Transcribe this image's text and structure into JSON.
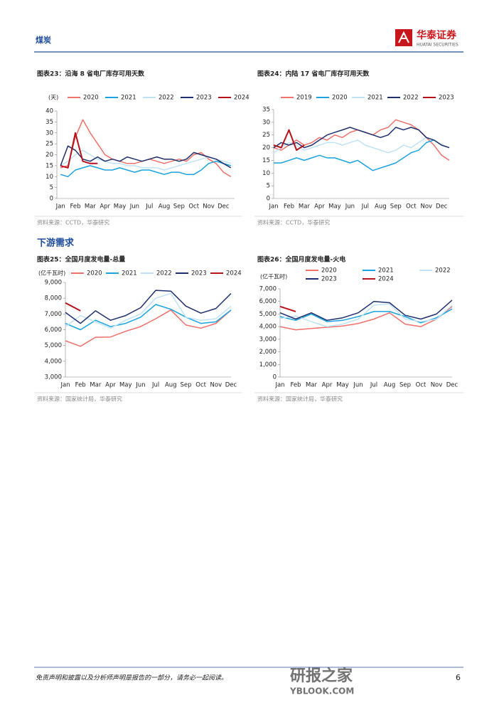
{
  "header": {
    "section": "煤炭",
    "brand": "华泰证券",
    "brand_en": "HUATAI SECURITIES"
  },
  "section_heading": "下游需求",
  "chart_data": [
    {
      "type": "line",
      "title": "图表23：沿海 8 省电厂库存可用天数",
      "unit": "(天)",
      "source": "资料来源：CCTD，华泰研究",
      "categories": [
        "Jan",
        null,
        "Feb",
        null,
        "Mar",
        null,
        "Apr",
        null,
        "May",
        null,
        "Jun",
        null,
        "Jul",
        null,
        "Aug",
        null,
        "Sep",
        null,
        "Oct",
        null,
        "Nov",
        null,
        "Dec",
        null
      ],
      "ylim": [
        0,
        40
      ],
      "yticks": [
        0,
        5,
        10,
        15,
        20,
        25,
        30,
        35,
        40
      ],
      "grid": false,
      "series": [
        {
          "name": "2020",
          "color": "#f0706a",
          "values": [
            14,
            15,
            28,
            36,
            30,
            25,
            20,
            18,
            17,
            16,
            16,
            17,
            18,
            17,
            16,
            17,
            18,
            17,
            20,
            21,
            18,
            16,
            12,
            10
          ]
        },
        {
          "name": "2021",
          "color": "#1aa3e0",
          "values": [
            11,
            10,
            13,
            14,
            15,
            14,
            13,
            13,
            14,
            13,
            12,
            13,
            13,
            12,
            11,
            12,
            12,
            11,
            11,
            13,
            16,
            17,
            16,
            15
          ]
        },
        {
          "name": "2022",
          "color": "#bfe3f5",
          "values": [
            15,
            17,
            20,
            22,
            20,
            18,
            17,
            16,
            16,
            15,
            15,
            14,
            14,
            14,
            13,
            14,
            15,
            16,
            17,
            18,
            19,
            18,
            17,
            16
          ]
        },
        {
          "name": "2023",
          "color": "#1f2f6e",
          "values": [
            15,
            24,
            22,
            18,
            17,
            19,
            17,
            18,
            17,
            19,
            18,
            17,
            18,
            19,
            18,
            18,
            17,
            18,
            21,
            20,
            19,
            18,
            16,
            14
          ]
        },
        {
          "name": "2024",
          "color": "#b5121b",
          "values": [
            15,
            14,
            30,
            17,
            16,
            16,
            null,
            null,
            null,
            null,
            null,
            null,
            null,
            null,
            null,
            null,
            null,
            null,
            null,
            null,
            null,
            null,
            null,
            null
          ]
        }
      ]
    },
    {
      "type": "line",
      "title": "图表24：内陆 17 省电厂库存可用天数",
      "source": "资料来源：CCTD，华泰研究",
      "categories": [
        "Jan",
        null,
        "Feb",
        null,
        "Mar",
        null,
        "Apr",
        null,
        "May",
        null,
        "Jun",
        null,
        "Jul",
        null,
        "Aug",
        null,
        "Sep",
        null,
        "Oct",
        null,
        "Nov",
        null,
        "Dec",
        null
      ],
      "ylim": [
        0,
        35
      ],
      "yticks": [
        0,
        5,
        10,
        15,
        20,
        25,
        30,
        35
      ],
      "grid": false,
      "series": [
        {
          "name": "2019",
          "color": "#f0706a",
          "values": [
            20,
            19,
            21,
            23,
            21,
            22,
            24,
            23,
            25,
            24,
            26,
            27,
            26,
            25,
            27,
            28,
            31,
            30,
            29,
            27,
            24,
            21,
            17,
            15
          ]
        },
        {
          "name": "2020",
          "color": "#1aa3e0",
          "values": [
            14,
            14,
            15,
            16,
            15,
            16,
            17,
            16,
            16,
            15,
            14,
            15,
            13,
            11,
            12,
            13,
            14,
            16,
            18,
            19,
            22,
            23,
            21,
            20
          ]
        },
        {
          "name": "2021",
          "color": "#bfe3f5",
          "values": [
            18,
            20,
            22,
            21,
            19,
            20,
            21,
            22,
            22,
            21,
            22,
            23,
            21,
            20,
            19,
            18,
            19,
            21,
            20,
            22,
            24,
            23,
            21,
            20
          ]
        },
        {
          "name": "2022",
          "color": "#1f2f6e",
          "values": [
            20,
            22,
            21,
            22,
            20,
            21,
            23,
            25,
            26,
            27,
            28,
            27,
            26,
            25,
            24,
            25,
            28,
            27,
            28,
            27,
            24,
            23,
            21,
            20
          ]
        },
        {
          "name": "2023",
          "color": "#b5121b",
          "values": [
            21,
            20,
            27,
            19,
            21,
            null,
            null,
            null,
            null,
            null,
            null,
            null,
            null,
            null,
            null,
            null,
            null,
            null,
            null,
            null,
            null,
            null,
            null,
            null
          ]
        }
      ]
    },
    {
      "type": "line",
      "title": "图表25：全国月度发电量-总量",
      "unit": "(亿千瓦时)",
      "source": "资料来源：国家统计局，华泰研究",
      "categories": [
        "Jan",
        "Feb",
        "Mar",
        "Apr",
        "May",
        "Jun",
        "Jul",
        "Aug",
        "Sep",
        "Oct",
        "Nov",
        "Dec"
      ],
      "ylim": [
        3000,
        9000
      ],
      "yticks": [
        {
          "value": 3000,
          "label": "3,000"
        },
        {
          "value": 4000,
          "label": "4,000"
        },
        {
          "value": 5000,
          "label": "5,000"
        },
        {
          "value": 6000,
          "label": "6,000"
        },
        {
          "value": 7000,
          "label": "7,000"
        },
        {
          "value": 8000,
          "label": "8,000"
        },
        {
          "value": 9000,
          "label": "9,000"
        }
      ],
      "grid": false,
      "series": [
        {
          "name": "2020",
          "color": "#f0706a",
          "values": [
            5300,
            4950,
            5520,
            5540,
            5900,
            6200,
            6700,
            7250,
            6300,
            6100,
            6400,
            7250
          ]
        },
        {
          "name": "2021",
          "color": "#1aa3e0",
          "values": [
            6400,
            6000,
            6600,
            6200,
            6400,
            6800,
            7600,
            7300,
            6800,
            6400,
            6500,
            7250
          ]
        },
        {
          "name": "2022",
          "color": "#bfe3f5",
          "values": [
            6200,
            6900,
            6500,
            6100,
            6600,
            7000,
            8000,
            8300,
            6800,
            6600,
            6700,
            7500
          ]
        },
        {
          "name": "2023",
          "color": "#1f2f6e",
          "values": [
            7100,
            6400,
            7200,
            6600,
            6900,
            7400,
            8500,
            8450,
            7500,
            7050,
            7350,
            8300
          ]
        },
        {
          "name": "2024",
          "color": "#b5121b",
          "values": [
            7700,
            7200,
            null,
            null,
            null,
            null,
            null,
            null,
            null,
            null,
            null,
            null
          ]
        }
      ]
    },
    {
      "type": "line",
      "title": "图表26：全国月度发电量-火电",
      "unit": "(亿千瓦时)",
      "source": "资料来源：国家统计局，华泰研究",
      "categories": [
        "Jan",
        "Feb",
        "Mar",
        "Apr",
        "May",
        "Jun",
        "Jul",
        "Aug",
        "Sep",
        "Oct",
        "Nov",
        "Dec"
      ],
      "ylim": [
        0,
        7000
      ],
      "yticks": [
        0,
        {
          "value": 1000,
          "label": "1,000"
        },
        {
          "value": 2000,
          "label": "2,000"
        },
        {
          "value": 3000,
          "label": "3,000"
        },
        {
          "value": 4000,
          "label": "4,000"
        },
        {
          "value": 5000,
          "label": "5,000"
        },
        {
          "value": 6000,
          "label": "6,000"
        },
        {
          "value": 7000,
          "label": "7,000"
        }
      ],
      "grid": false,
      "series": [
        {
          "name": "2020",
          "color": "#f0706a",
          "values": [
            4000,
            3750,
            3850,
            3950,
            4050,
            4250,
            4600,
            5100,
            4200,
            4000,
            4600,
            5600
          ]
        },
        {
          "name": "2021",
          "color": "#1aa3e0",
          "values": [
            4800,
            4500,
            5000,
            4400,
            4500,
            4800,
            5200,
            5200,
            4800,
            4300,
            4700,
            5400
          ]
        },
        {
          "name": "2022",
          "color": "#bfe3f5",
          "values": [
            4650,
            4850,
            4400,
            4000,
            4200,
            4600,
            5700,
            5800,
            4600,
            4400,
            4600,
            5700
          ]
        },
        {
          "name": "2023",
          "color": "#1f2f6e",
          "values": [
            5100,
            4600,
            5100,
            4500,
            4700,
            5100,
            6000,
            5900,
            4900,
            4600,
            5000,
            6100
          ]
        },
        {
          "name": "2024",
          "color": "#b5121b",
          "values": [
            5600,
            5200,
            null,
            null,
            null,
            null,
            null,
            null,
            null,
            null,
            null,
            null
          ]
        }
      ]
    }
  ],
  "footer": {
    "disclaimer": "免责声明和披露以及分析师声明是报告的一部分，请务必一起阅读。",
    "page": 6
  },
  "watermark": {
    "name": "研报之家",
    "url": "YBLOOK.COM"
  }
}
